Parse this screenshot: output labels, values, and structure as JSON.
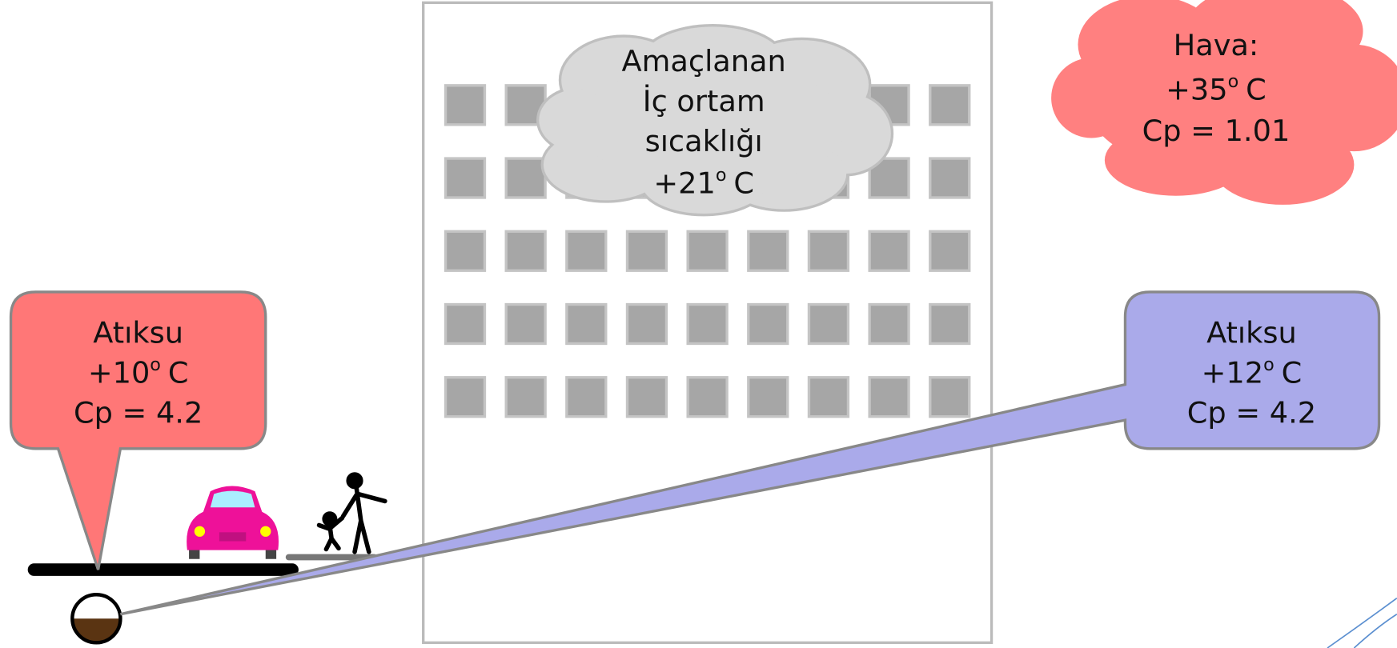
{
  "building_cloud": {
    "lines": [
      "Amaçlanan",
      "İç ortam",
      "sıcaklığı"
    ],
    "temp": {
      "value": "+21",
      "sup": "o",
      "unit": "C"
    }
  },
  "air_cloud": {
    "label": "Hava:",
    "temp": {
      "value": "+35",
      "sup": "o",
      "unit": "C"
    },
    "cp": "Cp = 1.01"
  },
  "left_callout": {
    "label": "Atıksu",
    "temp": {
      "value": "+10",
      "sup": "o",
      "unit": "C"
    },
    "cp": "Cp = 4.2"
  },
  "right_callout": {
    "label": "Atıksu",
    "temp": {
      "value": "+12",
      "sup": "o",
      "unit": "C"
    },
    "cp": "Cp = 4.2"
  }
}
